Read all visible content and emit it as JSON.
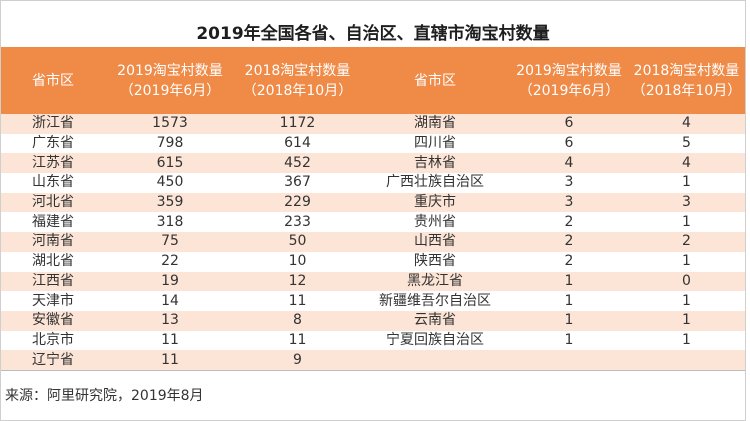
{
  "colors": {
    "header_bg": "#EF8A47",
    "header_text": "#ffffff",
    "band_row": "#FCE4D6",
    "plain_row": "#ffffff"
  },
  "source": "来源：阿里研究院，2019年8月",
  "chart_data": {
    "type": "table",
    "title": "2019年全国各省、自治区、直辖市淘宝村数量",
    "columns": [
      {
        "label": "省市区"
      },
      {
        "label": "2019淘宝村数量",
        "period": "（2019年6月）"
      },
      {
        "label": "2018淘宝村数量",
        "period": "（2018年10月）"
      },
      {
        "label": "省市区"
      },
      {
        "label": "2019淘宝村数量",
        "period": "（2019年6月）"
      },
      {
        "label": "2018淘宝村数量",
        "period": "（2018年10月）"
      }
    ],
    "rows": [
      [
        "浙江省",
        1573,
        1172,
        "湖南省",
        6,
        4
      ],
      [
        "广东省",
        798,
        614,
        "四川省",
        6,
        5
      ],
      [
        "江苏省",
        615,
        452,
        "吉林省",
        4,
        4
      ],
      [
        "山东省",
        450,
        367,
        "广西壮族自治区",
        3,
        1
      ],
      [
        "河北省",
        359,
        229,
        "重庆市",
        3,
        3
      ],
      [
        "福建省",
        318,
        233,
        "贵州省",
        2,
        1
      ],
      [
        "河南省",
        75,
        50,
        "山西省",
        2,
        2
      ],
      [
        "湖北省",
        22,
        10,
        "陕西省",
        2,
        1
      ],
      [
        "江西省",
        19,
        12,
        "黑龙江省",
        1,
        0
      ],
      [
        "天津市",
        14,
        11,
        "新疆维吾尔自治区",
        1,
        1
      ],
      [
        "安徽省",
        13,
        8,
        "云南省",
        1,
        1
      ],
      [
        "北京市",
        11,
        11,
        "宁夏回族自治区",
        1,
        1
      ],
      [
        "辽宁省",
        11,
        9
      ]
    ]
  }
}
